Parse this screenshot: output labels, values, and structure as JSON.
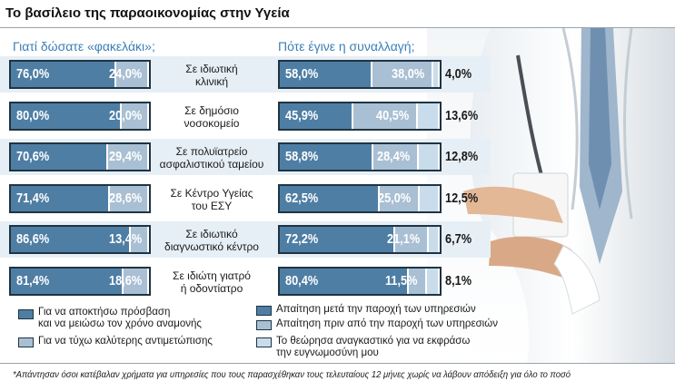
{
  "title": "Το βασίλειο της παραοικονομίας στην Υγεία",
  "left_header": "Γιατί δώσατε «φακελάκι»;",
  "right_header": "Πότε έγινε η συναλλαγή;",
  "colors": {
    "series_1": "#4f7ea4",
    "series_2": "#a9bfd3",
    "series_3": "#c9dcec",
    "band": "#e7eff6",
    "header": "#3b7fb6"
  },
  "chart_data": [
    {
      "type": "bar",
      "stacked": true,
      "orientation": "horizontal",
      "categories": [
        "Σε ιδιωτική κλινική",
        "Σε δημόσιο νοσοκομείο",
        "Σε πολυϊατρείο ασφαλιστικού ταμείου",
        "Σε Κέντρο Υγείας του ΕΣΥ",
        "Σε ιδιωτικό διαγνωστικό κέντρο",
        "Σε ιδιώτη γιατρό ή οδοντίατρο"
      ],
      "series": [
        {
          "name": "Για να αποκτήσω πρόσβαση και να μειώσω τον χρόνο αναμονής",
          "values": [
            76.0,
            80.0,
            70.6,
            71.4,
            86.6,
            81.4
          ],
          "labels": [
            "76,0%",
            "80,0%",
            "70,6%",
            "71,4%",
            "86,6%",
            "81,4%"
          ]
        },
        {
          "name": "Για να τύχω καλύτερης αντιμετώπισης",
          "values": [
            24.0,
            20.0,
            29.4,
            28.6,
            13.4,
            18.6
          ],
          "labels": [
            "24,0%",
            "20,0%",
            "29,4%",
            "28,6%",
            "13,4%",
            "18,6%"
          ]
        }
      ]
    },
    {
      "type": "bar",
      "stacked": true,
      "orientation": "horizontal",
      "categories": [
        "Σε ιδιωτική κλινική",
        "Σε δημόσιο νοσοκομείο",
        "Σε πολυϊατρείο ασφαλιστικού ταμείου",
        "Σε Κέντρο Υγείας του ΕΣΥ",
        "Σε ιδιωτικό διαγνωστικό κέντρο",
        "Σε ιδιώτη γιατρό ή οδοντίατρο"
      ],
      "series": [
        {
          "name": "Απαίτηση μετά την παροχή των υπηρεσιών",
          "values": [
            58.0,
            45.9,
            58.8,
            62.5,
            72.2,
            80.4
          ],
          "labels": [
            "58,0%",
            "45,9%",
            "58,8%",
            "62,5%",
            "72,2%",
            "80,4%"
          ]
        },
        {
          "name": "Απαίτηση πριν από την παροχή των υπηρεσιών",
          "values": [
            38.0,
            40.5,
            28.4,
            25.0,
            21.1,
            11.5
          ],
          "labels": [
            "38,0%",
            "40,5%",
            "28,4%",
            "25,0%",
            "21,1%",
            "11,5%"
          ]
        },
        {
          "name": "Το θεώρησα αναγκαστικό για να εκφράσω την ευγνωμοσύνη μου",
          "values": [
            4.0,
            13.6,
            12.8,
            12.5,
            6.7,
            8.1
          ],
          "labels": [
            "4,0%",
            "13,6%",
            "12,8%",
            "12,5%",
            "6,7%",
            "8,1%"
          ]
        }
      ]
    }
  ],
  "category_lines": [
    [
      "Σε ιδιωτική",
      "κλινική"
    ],
    [
      "Σε δημόσιο",
      "νοσοκομείο"
    ],
    [
      "Σε πολυϊατρείο",
      "ασφαλιστικού ταμείου"
    ],
    [
      "Σε Κέντρο Υγείας",
      "του ΕΣΥ"
    ],
    [
      "Σε ιδιωτικό",
      "διαγνωστικό κέντρο"
    ],
    [
      "Σε ιδιώτη γιατρό",
      "ή οδοντίατρο"
    ]
  ],
  "legend": {
    "left": [
      [
        "Για να αποκτήσω πρόσβαση",
        "και να μειώσω τον χρόνο αναμονής"
      ],
      [
        "Για να τύχω καλύτερης αντιμετώπισης"
      ]
    ],
    "right": [
      [
        "Απαίτηση μετά την παροχή των υπηρεσιών"
      ],
      [
        "Απαίτηση πριν από την παροχή των υπηρεσιών"
      ],
      [
        "Το θεώρησα αναγκαστικό για να εκφράσω",
        "την ευγνωμοσύνη μου"
      ]
    ]
  },
  "footnote": "*Απάντησαν όσοι κατέβαλαν χρήματα για υπηρεσίες που τους παρασχέθηκαν τους τελευταίους 12 μήνες χωρίς να λάβουν απόδειξη για όλο το ποσό"
}
